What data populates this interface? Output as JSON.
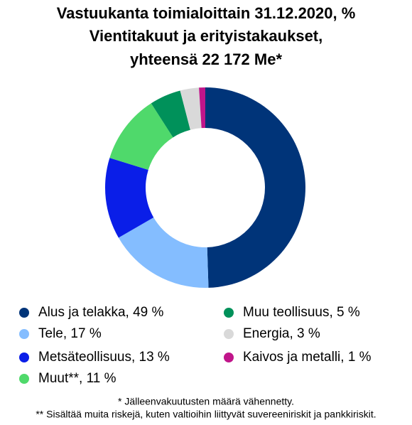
{
  "chart_data": {
    "type": "donut",
    "title": [
      "Vastuukanta toimialoittain 31.12.2020, %",
      "Vientitakuut ja erityistakaukset,",
      "yhteensä 22 172 Me*"
    ],
    "categories": [
      "Alus ja telakka, 49 %",
      "Tele, 17 %",
      "Metsäteollisuus, 13 %",
      "Muut**, 11 %",
      "Muu teollisuus, 5 %",
      "Energia, 3 %",
      "Kaivos ja metalli, 1 %"
    ],
    "values": [
      49,
      17,
      13,
      11,
      5,
      3,
      1
    ],
    "colors": [
      "#003479",
      "#84bdff",
      "#0a1ee8",
      "#4fd96b",
      "#00915a",
      "#d9d9d9",
      "#c0158a"
    ],
    "notes": [
      "* Jälleenvakuutusten määrä vähennetty.",
      "** Sisältää muita riskejä, kuten valtioihin liittyvät suvereeniriskit ja pankkiriskit."
    ]
  }
}
